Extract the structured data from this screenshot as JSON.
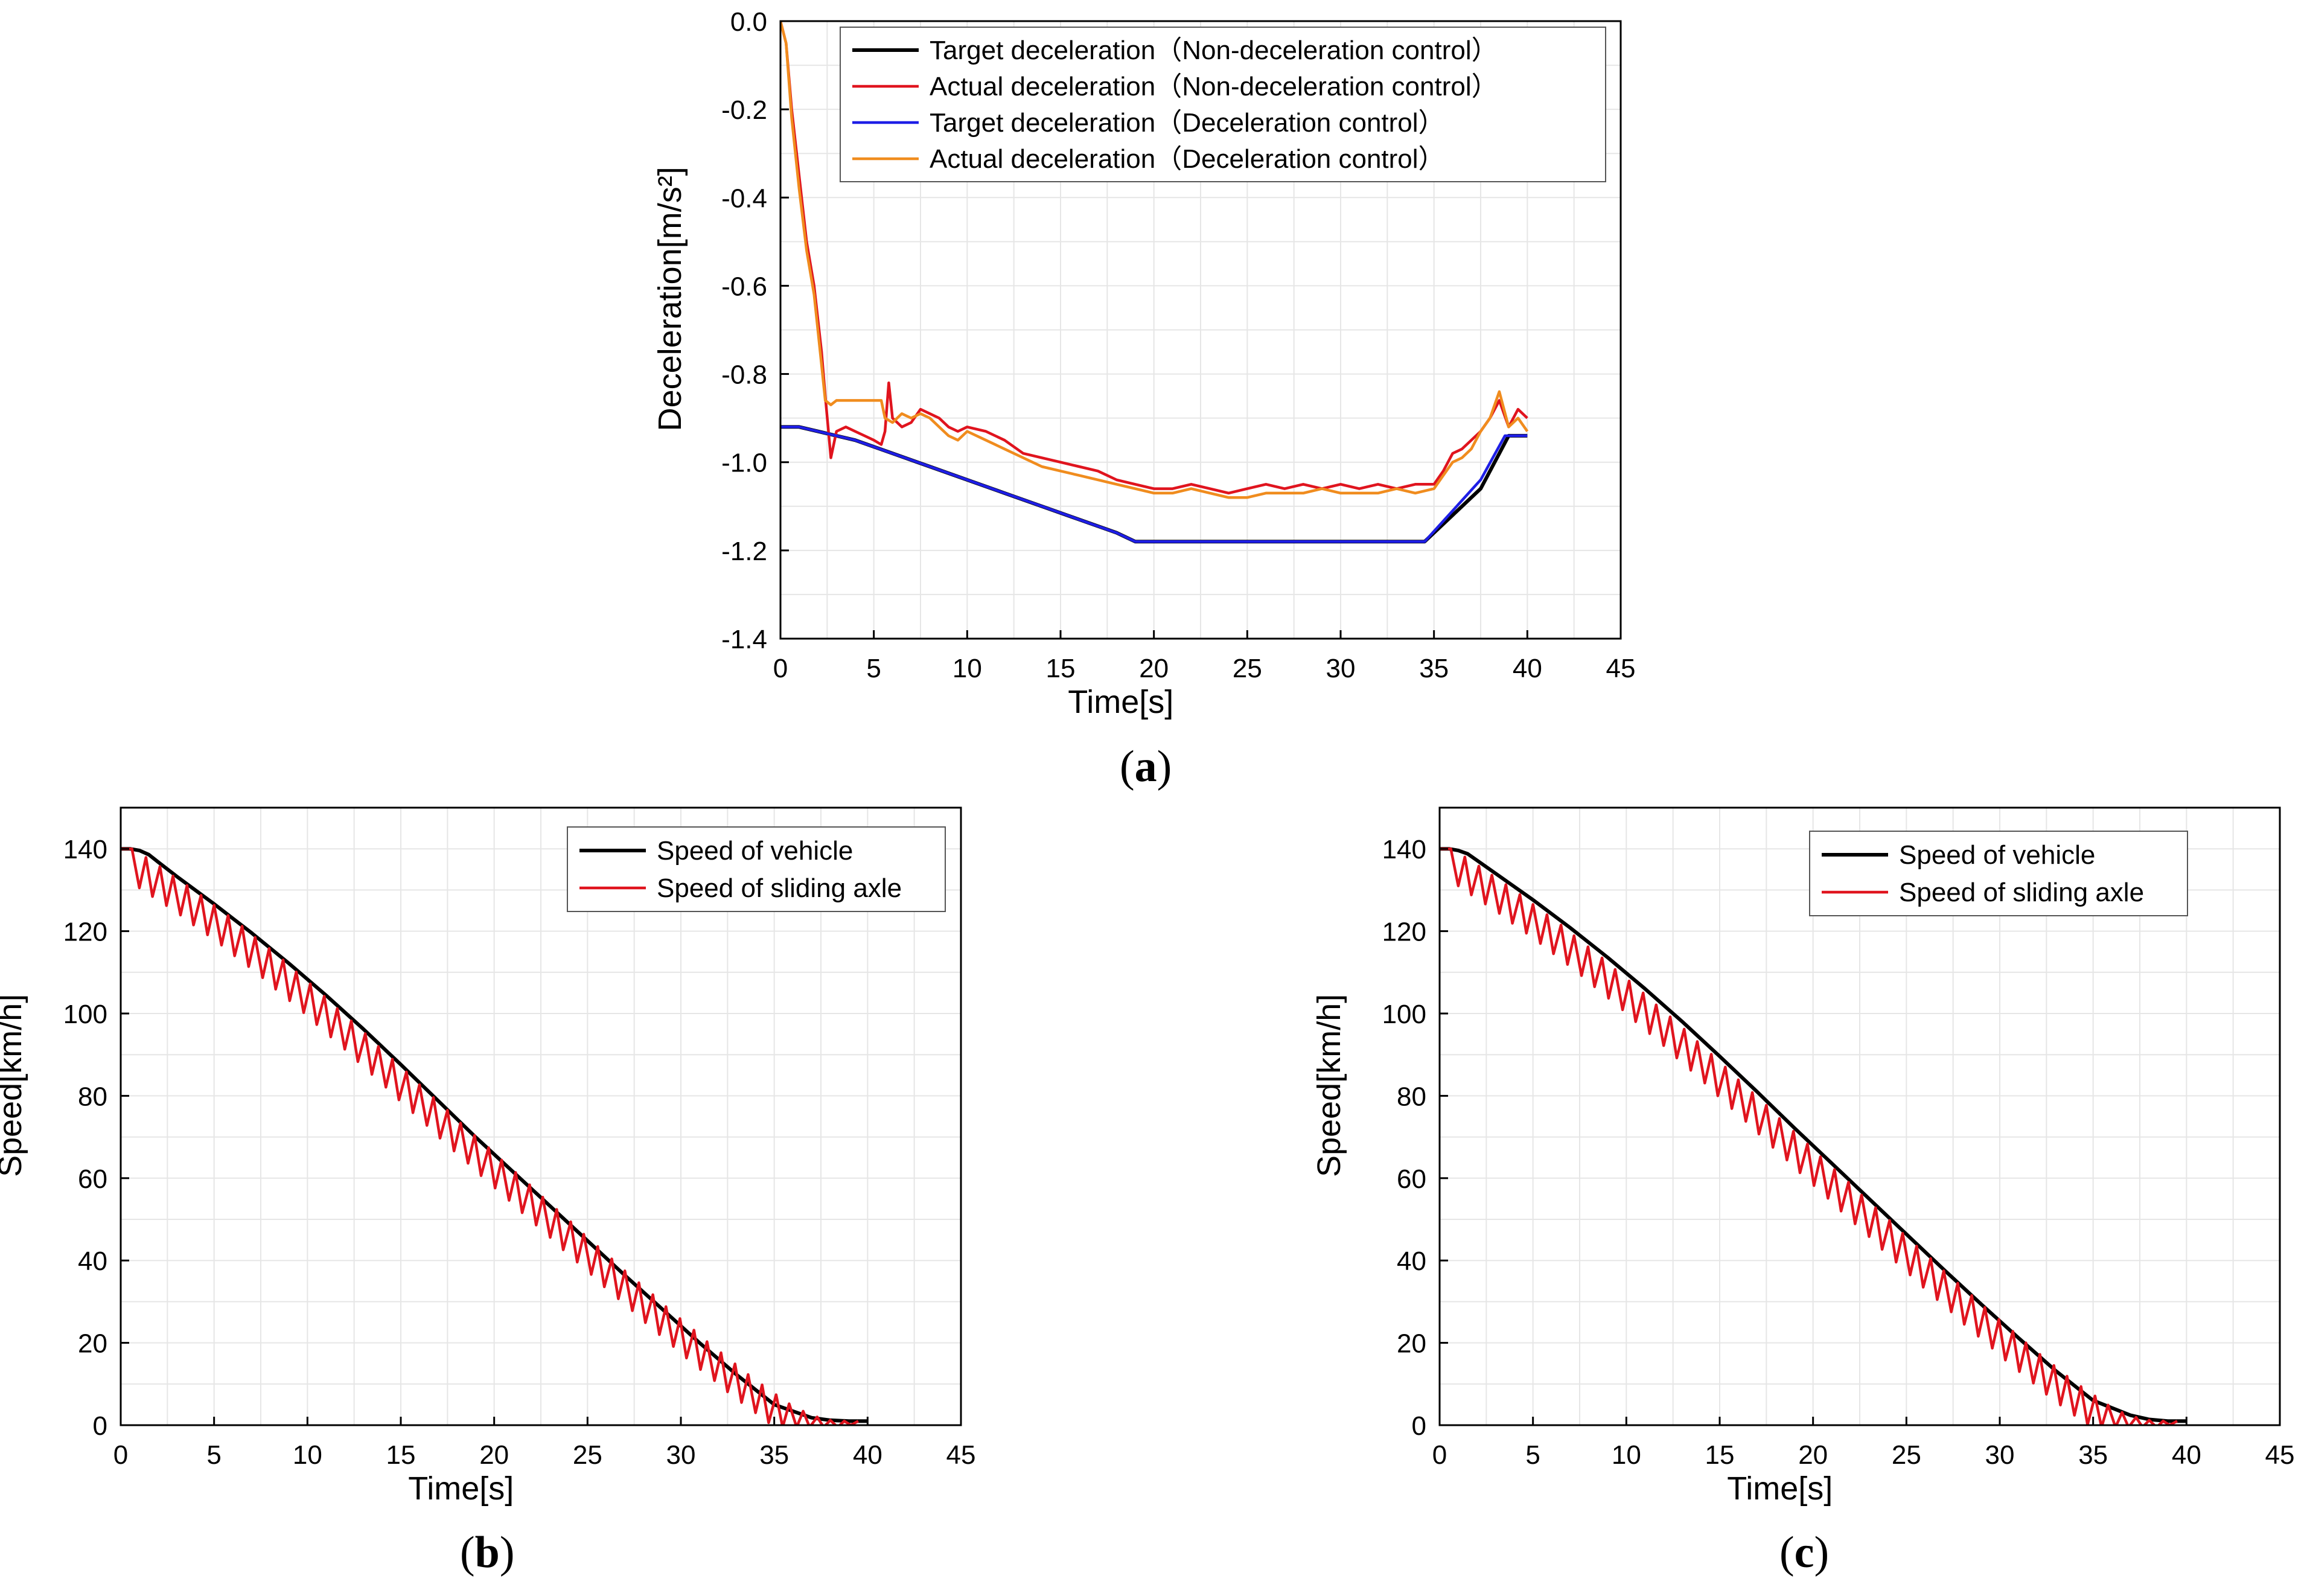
{
  "figure": {
    "panels": [
      {
        "label_open": "(",
        "label_letter": "a",
        "label_close": ")"
      },
      {
        "label_open": "(",
        "label_letter": "b",
        "label_close": ")"
      },
      {
        "label_open": "(",
        "label_letter": "c",
        "label_close": ")"
      }
    ]
  },
  "chart_data": [
    {
      "id": "a",
      "type": "line",
      "title": "",
      "xlabel": "Time[s]",
      "ylabel": "Deceleration[m/s²]",
      "xlim": [
        0,
        45
      ],
      "ylim": [
        -1.4,
        0.0
      ],
      "xticks": [
        0,
        5,
        10,
        15,
        20,
        25,
        30,
        35,
        40,
        45
      ],
      "yticks": [
        0.0,
        -0.2,
        -0.4,
        -0.6,
        -0.8,
        -1.0,
        -1.2,
        -1.4
      ],
      "xtick_labels": [
        "0",
        "5",
        "10",
        "15",
        "20",
        "25",
        "30",
        "35",
        "40",
        "45"
      ],
      "ytick_labels": [
        "0.0",
        "-0.2",
        "-0.4",
        "-0.6",
        "-0.8",
        "-1.0",
        "-1.2",
        "-1.4"
      ],
      "grid": true,
      "legend_position": "top-right",
      "series": [
        {
          "name": "Target deceleration（Non-deceleration control）",
          "color": "#000000",
          "x": [
            0,
            1,
            2,
            4,
            6,
            8,
            10,
            12,
            14,
            16,
            18,
            19,
            22,
            25,
            28,
            31,
            34.5,
            36,
            37.5,
            39,
            40
          ],
          "y": [
            -0.92,
            -0.92,
            -0.93,
            -0.95,
            -0.98,
            -1.01,
            -1.04,
            -1.07,
            -1.1,
            -1.13,
            -1.16,
            -1.18,
            -1.18,
            -1.18,
            -1.18,
            -1.18,
            -1.18,
            -1.12,
            -1.06,
            -0.94,
            -0.94
          ]
        },
        {
          "name": "Actual deceleration（Non-deceleration control）",
          "color": "#e0141e",
          "x": [
            0,
            0.3,
            0.6,
            1.0,
            1.4,
            1.8,
            2.2,
            2.4,
            2.7,
            3.0,
            3.5,
            4.0,
            4.5,
            5.0,
            5.4,
            5.6,
            5.8,
            6.0,
            6.5,
            7.0,
            7.5,
            8.0,
            8.5,
            9.0,
            9.5,
            10,
            11,
            12,
            13,
            14,
            15,
            16,
            17,
            18,
            19,
            20,
            21,
            22,
            23,
            24,
            25,
            26,
            27,
            28,
            29,
            30,
            31,
            32,
            33,
            34,
            35,
            35.5,
            36,
            36.5,
            37,
            37.5,
            38,
            38.5,
            39,
            39.5,
            40
          ],
          "y": [
            0.0,
            -0.05,
            -0.2,
            -0.35,
            -0.5,
            -0.6,
            -0.75,
            -0.85,
            -0.99,
            -0.93,
            -0.92,
            -0.93,
            -0.94,
            -0.95,
            -0.96,
            -0.93,
            -0.82,
            -0.9,
            -0.92,
            -0.91,
            -0.88,
            -0.89,
            -0.9,
            -0.92,
            -0.93,
            -0.92,
            -0.93,
            -0.95,
            -0.98,
            -0.99,
            -1.0,
            -1.01,
            -1.02,
            -1.04,
            -1.05,
            -1.06,
            -1.06,
            -1.05,
            -1.06,
            -1.07,
            -1.06,
            -1.05,
            -1.06,
            -1.05,
            -1.06,
            -1.05,
            -1.06,
            -1.05,
            -1.06,
            -1.05,
            -1.05,
            -1.02,
            -0.98,
            -0.97,
            -0.95,
            -0.93,
            -0.9,
            -0.86,
            -0.92,
            -0.88,
            -0.9
          ]
        },
        {
          "name": "Target deceleration（Deceleration control）",
          "color": "#1e1ee6",
          "x": [
            0,
            1,
            2,
            4,
            6,
            8,
            10,
            12,
            14,
            16,
            18,
            19,
            22,
            25,
            28,
            31,
            34.5,
            36,
            37.5,
            38.8,
            40
          ],
          "y": [
            -0.92,
            -0.92,
            -0.93,
            -0.95,
            -0.98,
            -1.01,
            -1.04,
            -1.07,
            -1.1,
            -1.13,
            -1.16,
            -1.18,
            -1.18,
            -1.18,
            -1.18,
            -1.18,
            -1.18,
            -1.11,
            -1.04,
            -0.94,
            -0.94
          ]
        },
        {
          "name": "Actual deceleration（Deceleration control）",
          "color": "#f08c1e",
          "x": [
            0,
            0.3,
            0.6,
            1.0,
            1.4,
            1.8,
            2.2,
            2.4,
            2.7,
            3.0,
            3.5,
            4.0,
            4.5,
            5.0,
            5.4,
            5.6,
            6.0,
            6.5,
            7.0,
            7.5,
            8.0,
            8.5,
            9.0,
            9.5,
            10,
            11,
            12,
            13,
            14,
            15,
            16,
            17,
            18,
            19,
            20,
            21,
            22,
            23,
            24,
            25,
            26,
            27,
            28,
            29,
            30,
            31,
            32,
            33,
            34,
            35,
            35.5,
            36,
            36.5,
            37,
            37.5,
            38,
            38.5,
            39,
            39.5,
            40
          ],
          "y": [
            0.0,
            -0.05,
            -0.22,
            -0.38,
            -0.52,
            -0.62,
            -0.78,
            -0.86,
            -0.87,
            -0.86,
            -0.86,
            -0.86,
            -0.86,
            -0.86,
            -0.86,
            -0.9,
            -0.91,
            -0.89,
            -0.9,
            -0.89,
            -0.9,
            -0.92,
            -0.94,
            -0.95,
            -0.93,
            -0.95,
            -0.97,
            -0.99,
            -1.01,
            -1.02,
            -1.03,
            -1.04,
            -1.05,
            -1.06,
            -1.07,
            -1.07,
            -1.06,
            -1.07,
            -1.08,
            -1.08,
            -1.07,
            -1.07,
            -1.07,
            -1.06,
            -1.07,
            -1.07,
            -1.07,
            -1.06,
            -1.07,
            -1.06,
            -1.03,
            -1.0,
            -0.99,
            -0.97,
            -0.93,
            -0.9,
            -0.84,
            -0.92,
            -0.9,
            -0.93
          ]
        }
      ]
    },
    {
      "id": "b",
      "type": "line",
      "title": "",
      "xlabel": "Time[s]",
      "ylabel": "Speed[km/h]",
      "xlim": [
        0,
        45
      ],
      "ylim": [
        0,
        150
      ],
      "xticks": [
        0,
        5,
        10,
        15,
        20,
        25,
        30,
        35,
        40,
        45
      ],
      "yticks": [
        0,
        20,
        40,
        60,
        80,
        100,
        120,
        140
      ],
      "xtick_labels": [
        "0",
        "5",
        "10",
        "15",
        "20",
        "25",
        "30",
        "35",
        "40",
        "45"
      ],
      "ytick_labels": [
        "0",
        "20",
        "40",
        "60",
        "80",
        "100",
        "120",
        "140"
      ],
      "grid": true,
      "legend_position": "top-right",
      "series": [
        {
          "name": "Speed of vehicle",
          "color": "#000000",
          "x": [
            0,
            0.5,
            1,
            1.5,
            2,
            3,
            5,
            7,
            9,
            11,
            13,
            15,
            17,
            19,
            21,
            23,
            25,
            27,
            29,
            31,
            33,
            35,
            37,
            38,
            39,
            40
          ],
          "y": [
            140,
            140,
            139.6,
            138.6,
            136.8,
            133.3,
            126.6,
            119.6,
            112.2,
            104.4,
            96.2,
            87.6,
            78.8,
            70.0,
            61.6,
            53.2,
            44.8,
            36.4,
            28.2,
            20.0,
            12.2,
            5.0,
            1.8,
            1.2,
            1.0,
            1.0
          ]
        },
        {
          "name": "Speed of sliding axle",
          "color": "#e0141e",
          "oscillation": {
            "period_s": 0.75,
            "amplitude_kmh": 5,
            "start_s": 0.6,
            "end_s": 39.5
          },
          "x": [
            0,
            0.6,
            1.0,
            1.35,
            1.7,
            2.1,
            2.45,
            2.8,
            3.2,
            3.55,
            3.9,
            4.3,
            4.65,
            5.0,
            5.4,
            5.75,
            6.1,
            6.5,
            6.85,
            7.2,
            7.6,
            7.95,
            8.3,
            8.7,
            9.05,
            9.4,
            9.8,
            10.15,
            10.5,
            10.9,
            11.25,
            11.6,
            12.0,
            12.35,
            12.7,
            13.1,
            13.45,
            13.8,
            14.2,
            14.55,
            14.9,
            15.3,
            15.65,
            16.0,
            16.4,
            16.75,
            17.1,
            17.5,
            17.85,
            18.2,
            18.6,
            18.95,
            19.3,
            19.7,
            20.05,
            20.4,
            20.8,
            21.15,
            21.5,
            21.9,
            22.25,
            22.6,
            23.0,
            23.35,
            23.7,
            24.1,
            24.45,
            24.8,
            25.2,
            25.55,
            25.9,
            26.3,
            26.65,
            27.0,
            27.4,
            27.75,
            28.1,
            28.5,
            28.85,
            29.2,
            29.6,
            29.95,
            30.3,
            30.7,
            31.05,
            31.4,
            31.8,
            32.15,
            32.5,
            32.9,
            33.25,
            33.6,
            34.0,
            34.35,
            34.7,
            35.1,
            35.45,
            35.8,
            36.2,
            36.55,
            36.9,
            37.3,
            37.65,
            38.0,
            38.4,
            38.75,
            39.1,
            39.5
          ],
          "y": [
            140,
            140,
            130.5,
            137.9,
            128.4,
            135.7,
            126.2,
            133.4,
            123.9,
            131.1,
            121.5,
            128.7,
            119.1,
            126.3,
            116.6,
            123.8,
            114.0,
            121.2,
            111.4,
            118.5,
            108.7,
            115.8,
            105.9,
            113.0,
            103.1,
            110.1,
            100.2,
            107.2,
            97.3,
            104.2,
            94.3,
            101.2,
            91.3,
            98.2,
            88.3,
            95.1,
            85.2,
            92.0,
            82.1,
            88.9,
            79.0,
            85.8,
            75.9,
            82.7,
            72.8,
            79.6,
            69.7,
            76.5,
            66.6,
            73.4,
            63.6,
            70.4,
            60.6,
            67.4,
            57.6,
            64.4,
            54.6,
            61.4,
            51.6,
            58.4,
            48.6,
            55.4,
            45.6,
            52.4,
            42.6,
            49.4,
            39.6,
            46.4,
            36.6,
            43.4,
            33.6,
            40.4,
            30.7,
            37.5,
            27.8,
            34.6,
            24.9,
            31.7,
            22.0,
            28.8,
            19.1,
            25.9,
            16.3,
            23.1,
            13.5,
            20.3,
            10.8,
            17.6,
            8.1,
            14.9,
            5.5,
            12.3,
            3.0,
            9.8,
            0.6,
            7.4,
            -0.5,
            5.2,
            -0.5,
            3.4,
            -0.5,
            2.0,
            -0.5,
            1.2,
            -0.5,
            1.0,
            0.0,
            1.0
          ]
        }
      ]
    },
    {
      "id": "c",
      "type": "line",
      "title": "",
      "xlabel": "Time[s]",
      "ylabel": "Speed[km/h]",
      "xlim": [
        0,
        45
      ],
      "ylim": [
        0,
        150
      ],
      "xticks": [
        0,
        5,
        10,
        15,
        20,
        25,
        30,
        35,
        40,
        45
      ],
      "yticks": [
        0,
        20,
        40,
        60,
        80,
        100,
        120,
        140
      ],
      "xtick_labels": [
        "0",
        "5",
        "10",
        "15",
        "20",
        "25",
        "30",
        "35",
        "40",
        "45"
      ],
      "ytick_labels": [
        "0",
        "20",
        "40",
        "60",
        "80",
        "100",
        "120",
        "140"
      ],
      "grid": true,
      "legend_position": "top-right",
      "series": [
        {
          "name": "Speed of vehicle",
          "color": "#000000",
          "x": [
            0,
            0.5,
            1,
            1.5,
            2,
            3,
            5,
            7,
            9,
            11,
            13,
            15,
            17,
            19,
            21,
            23,
            25,
            27,
            29,
            31,
            33,
            35,
            37,
            38,
            39,
            40
          ],
          "y": [
            140,
            140,
            139.6,
            138.8,
            137.2,
            134.0,
            127.6,
            120.8,
            113.6,
            106.0,
            98.0,
            89.6,
            81.0,
            72.2,
            63.6,
            55.0,
            46.4,
            37.8,
            29.4,
            21.2,
            13.2,
            6.0,
            2.4,
            1.4,
            1.0,
            1.0
          ]
        },
        {
          "name": "Speed of sliding axle",
          "color": "#e0141e",
          "oscillation": {
            "period_s": 0.75,
            "amplitude_kmh": 6,
            "start_s": 0.6,
            "end_s": 39.5
          },
          "x": [
            0,
            0.6,
            1.0,
            1.35,
            1.7,
            2.1,
            2.45,
            2.8,
            3.2,
            3.55,
            3.9,
            4.3,
            4.65,
            5.0,
            5.4,
            5.75,
            6.1,
            6.5,
            6.85,
            7.2,
            7.6,
            7.95,
            8.3,
            8.7,
            9.05,
            9.4,
            9.8,
            10.15,
            10.5,
            10.9,
            11.25,
            11.6,
            12.0,
            12.35,
            12.7,
            13.1,
            13.45,
            13.8,
            14.2,
            14.55,
            14.9,
            15.3,
            15.65,
            16.0,
            16.4,
            16.75,
            17.1,
            17.5,
            17.85,
            18.2,
            18.6,
            18.95,
            19.3,
            19.7,
            20.05,
            20.4,
            20.8,
            21.15,
            21.5,
            21.9,
            22.25,
            22.6,
            23.0,
            23.35,
            23.7,
            24.1,
            24.45,
            24.8,
            25.2,
            25.55,
            25.9,
            26.3,
            26.65,
            27.0,
            27.4,
            27.75,
            28.1,
            28.5,
            28.85,
            29.2,
            29.6,
            29.95,
            30.3,
            30.7,
            31.05,
            31.4,
            31.8,
            32.15,
            32.5,
            32.9,
            33.25,
            33.6,
            34.0,
            34.35,
            34.7,
            35.1,
            35.45,
            35.8,
            36.2,
            36.55,
            36.9,
            37.3,
            37.65,
            38.0,
            38.4,
            38.75,
            39.1,
            39.5
          ],
          "y": [
            140,
            140,
            131.0,
            138.0,
            128.8,
            135.8,
            126.6,
            133.6,
            124.3,
            131.3,
            121.9,
            128.9,
            119.5,
            126.5,
            117.0,
            124.0,
            114.5,
            121.5,
            111.9,
            118.9,
            109.2,
            116.2,
            106.5,
            113.5,
            103.7,
            110.7,
            100.9,
            107.9,
            98.0,
            105.0,
            95.1,
            102.1,
            92.2,
            99.2,
            89.2,
            96.2,
            86.2,
            93.2,
            83.1,
            90.1,
            80.0,
            87.0,
            76.9,
            83.9,
            73.8,
            80.8,
            70.7,
            77.7,
            67.5,
            74.5,
            64.4,
            71.4,
            61.3,
            68.3,
            58.2,
            65.2,
            55.1,
            62.1,
            52.0,
            59.0,
            48.9,
            55.9,
            45.8,
            52.8,
            42.7,
            49.7,
            39.6,
            46.6,
            36.5,
            43.5,
            33.5,
            40.5,
            30.5,
            37.5,
            27.5,
            34.5,
            24.5,
            31.5,
            21.6,
            28.6,
            18.7,
            25.7,
            15.8,
            22.8,
            13.0,
            20.0,
            10.2,
            17.2,
            7.5,
            14.5,
            4.9,
            11.9,
            2.4,
            9.4,
            0.1,
            7.1,
            -0.5,
            4.9,
            -0.5,
            3.1,
            -0.5,
            1.9,
            -0.5,
            1.2,
            -0.5,
            1.0,
            0.0,
            1.0
          ]
        }
      ]
    }
  ]
}
